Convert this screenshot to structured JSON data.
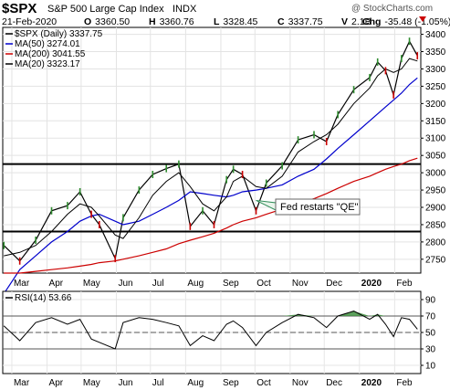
{
  "header": {
    "symbol": "$SPX",
    "name": "S&P 500 Large Cap Index",
    "exchange": "INDX",
    "watermark": "@ StockCharts.com",
    "date": "21-Feb-2020",
    "ohlc": [
      {
        "key": "O",
        "value": "3360.50"
      },
      {
        "key": "H",
        "value": "3360.76"
      },
      {
        "key": "L",
        "value": "3328.45"
      },
      {
        "key": "C",
        "value": "3337.75"
      },
      {
        "key": "V",
        "value": "2.1B"
      },
      {
        "key": "Chg",
        "value": "-35.48 (-1.05%)"
      }
    ]
  },
  "colors": {
    "price": "#000000",
    "up": "#2e8b2e",
    "down": "#cc0000",
    "ma50": "#0000cc",
    "ma200": "#cc0000",
    "ma20": "#000000",
    "rsi_fill_high": "#3f8f3f",
    "rsi_fill_low": "#3f5fbf",
    "annotation_arrow": "#2e8b57"
  },
  "chart_data": [
    {
      "type": "line",
      "panel": "price",
      "legend": [
        {
          "label": "$SPX (Daily) 3337.75",
          "color": "#000000"
        },
        {
          "label": "MA(50) 3274.01",
          "color": "#0000cc"
        },
        {
          "label": "MA(200) 3041.55",
          "color": "#cc0000"
        },
        {
          "label": "MA(20) 3323.17",
          "color": "#000000"
        }
      ],
      "x_labels": [
        "Mar",
        "Apr",
        "May",
        "Jun",
        "Jul",
        "Aug",
        "Sep",
        "Oct",
        "Nov",
        "Dec",
        "2020",
        "Feb"
      ],
      "y_ticks": [
        2750,
        2800,
        2850,
        2900,
        2950,
        3000,
        3050,
        3100,
        3150,
        3200,
        3250,
        3300,
        3350,
        3400
      ],
      "ylim": [
        2710,
        3420
      ],
      "x": [
        "2019-02-22",
        "2019-03-08",
        "2019-03-22",
        "2019-04-05",
        "2019-04-19",
        "2019-04-30",
        "2019-05-10",
        "2019-05-17",
        "2019-05-31",
        "2019-06-07",
        "2019-06-21",
        "2019-07-03",
        "2019-07-15",
        "2019-07-26",
        "2019-08-05",
        "2019-08-16",
        "2019-08-26",
        "2019-09-06",
        "2019-09-12",
        "2019-09-20",
        "2019-10-02",
        "2019-10-11",
        "2019-10-25",
        "2019-11-08",
        "2019-11-22",
        "2019-12-03",
        "2019-12-13",
        "2019-12-27",
        "2020-01-10",
        "2020-01-17",
        "2020-01-24",
        "2020-01-31",
        "2020-02-07",
        "2020-02-14",
        "2020-02-21"
      ],
      "series": [
        {
          "name": "$SPX (Daily)",
          "values": [
            2790,
            2745,
            2805,
            2890,
            2905,
            2945,
            2880,
            2850,
            2752,
            2870,
            2950,
            2995,
            3012,
            3025,
            2845,
            2890,
            2850,
            2980,
            3010,
            2995,
            2890,
            2970,
            3020,
            3095,
            3110,
            3090,
            3168,
            3240,
            3275,
            3320,
            3295,
            3225,
            3330,
            3380,
            3338
          ]
        },
        {
          "name": "MA(50)",
          "values": [
            2650,
            2720,
            2760,
            2800,
            2830,
            2860,
            2875,
            2880,
            2860,
            2850,
            2860,
            2880,
            2900,
            2920,
            2945,
            2940,
            2935,
            2930,
            2935,
            2945,
            2950,
            2955,
            2965,
            2990,
            3010,
            3040,
            3070,
            3110,
            3150,
            3170,
            3190,
            3210,
            3230,
            3255,
            3274
          ]
        },
        {
          "name": "MA(200)",
          "values": [
            2710,
            2710,
            2715,
            2720,
            2725,
            2730,
            2735,
            2740,
            2745,
            2750,
            2760,
            2770,
            2780,
            2795,
            2805,
            2815,
            2825,
            2840,
            2850,
            2860,
            2870,
            2880,
            2895,
            2910,
            2925,
            2940,
            2955,
            2975,
            2990,
            3000,
            3010,
            3018,
            3025,
            3035,
            3042
          ]
        },
        {
          "name": "MA(20)",
          "values": [
            2760,
            2770,
            2790,
            2830,
            2880,
            2910,
            2900,
            2875,
            2820,
            2810,
            2870,
            2935,
            2975,
            3000,
            2960,
            2910,
            2890,
            2930,
            2975,
            2990,
            2960,
            2955,
            2990,
            3060,
            3090,
            3110,
            3140,
            3200,
            3245,
            3280,
            3300,
            3290,
            3300,
            3330,
            3323
          ]
        }
      ],
      "horizontal_lines": [
        3025,
        2830
      ],
      "annotations": [
        {
          "text": "Fed restarts \"QE\"",
          "x": "2019-10-02",
          "y": 2920
        }
      ]
    },
    {
      "type": "line",
      "panel": "rsi",
      "legend": [
        {
          "label": "RSI(14) 53.66",
          "color": "#000000"
        }
      ],
      "x_labels": [
        "Mar",
        "Apr",
        "May",
        "Jun",
        "Jul",
        "Aug",
        "Sep",
        "Oct",
        "Nov",
        "Dec",
        "2020",
        "Feb"
      ],
      "y_ticks": [
        10,
        30,
        50,
        70,
        90
      ],
      "ylim": [
        0,
        100
      ],
      "reference_lines": [
        30,
        50,
        70
      ],
      "x": [
        "2019-02-22",
        "2019-03-08",
        "2019-03-22",
        "2019-04-05",
        "2019-04-19",
        "2019-04-30",
        "2019-05-10",
        "2019-05-17",
        "2019-05-31",
        "2019-06-07",
        "2019-06-21",
        "2019-07-03",
        "2019-07-15",
        "2019-07-26",
        "2019-08-05",
        "2019-08-16",
        "2019-08-26",
        "2019-09-06",
        "2019-09-12",
        "2019-09-20",
        "2019-10-02",
        "2019-10-11",
        "2019-10-25",
        "2019-11-08",
        "2019-11-22",
        "2019-12-03",
        "2019-12-13",
        "2019-12-27",
        "2020-01-10",
        "2020-01-17",
        "2020-01-24",
        "2020-01-31",
        "2020-02-07",
        "2020-02-14",
        "2020-02-21"
      ],
      "series": [
        {
          "name": "RSI(14)",
          "values": [
            58,
            40,
            62,
            68,
            60,
            66,
            42,
            38,
            30,
            62,
            68,
            66,
            62,
            58,
            34,
            46,
            40,
            60,
            64,
            56,
            34,
            50,
            62,
            72,
            68,
            56,
            70,
            76,
            66,
            72,
            60,
            45,
            68,
            66,
            54
          ]
        }
      ]
    }
  ]
}
